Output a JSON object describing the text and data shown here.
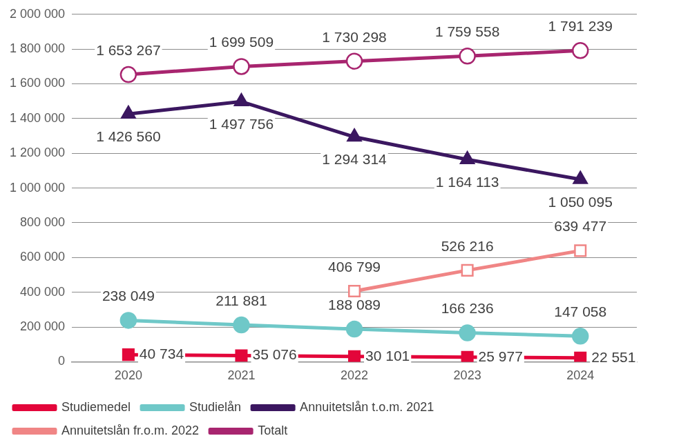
{
  "chart_data": {
    "type": "line",
    "categories": [
      "2020",
      "2021",
      "2022",
      "2023",
      "2024"
    ],
    "ylim": [
      0,
      2000000
    ],
    "yticks": [
      {
        "value": 0,
        "label": "0"
      },
      {
        "value": 200000,
        "label": "200 000"
      },
      {
        "value": 400000,
        "label": "400 000"
      },
      {
        "value": 600000,
        "label": "600 000"
      },
      {
        "value": 800000,
        "label": "800 000"
      },
      {
        "value": 1000000,
        "label": "1 000 000"
      },
      {
        "value": 1200000,
        "label": "1 200 000"
      },
      {
        "value": 1400000,
        "label": "1 400 000"
      },
      {
        "value": 1600000,
        "label": "1 600 000"
      },
      {
        "value": 1800000,
        "label": "1 800 000"
      },
      {
        "value": 2000000,
        "label": "2 000 000"
      }
    ],
    "grid": "y",
    "legend": "bottom",
    "series": [
      {
        "name": "Studiemedel",
        "color": "#e3063a",
        "marker": "square",
        "values": [
          40734,
          35076,
          30101,
          25977,
          22551
        ],
        "value_labels": [
          "40 734",
          "35 076",
          "30 101",
          "25 977",
          "22 551"
        ]
      },
      {
        "name": "Studielån",
        "color": "#6fc8c8",
        "marker": "circle",
        "values": [
          238049,
          211881,
          188089,
          166236,
          147058
        ],
        "value_labels": [
          "238 049",
          "211 881",
          "188 089",
          "166 236",
          "147 058"
        ]
      },
      {
        "name": "Annuitetslån t.o.m. 2021",
        "color": "#3b1760",
        "marker": "triangle",
        "values": [
          1426560,
          1497756,
          1294314,
          1164113,
          1050095
        ],
        "value_labels": [
          "1 426 560",
          "1 497 756",
          "1 294 314",
          "1 164 113",
          "1 050 095"
        ]
      },
      {
        "name": "Annuitetslån fr.o.m. 2022",
        "color": "#f08585",
        "marker": "square",
        "values": [
          null,
          null,
          406799,
          526216,
          639477
        ],
        "value_labels": [
          null,
          null,
          "406 799",
          "526 216",
          "639 477"
        ]
      },
      {
        "name": "Totalt",
        "color": "#a8256f",
        "marker": "circle",
        "values": [
          1653267,
          1699509,
          1730298,
          1759558,
          1791239
        ],
        "value_labels": [
          "1 653 267",
          "1 699 509",
          "1 730 298",
          "1 759 558",
          "1 791 239"
        ]
      }
    ]
  }
}
